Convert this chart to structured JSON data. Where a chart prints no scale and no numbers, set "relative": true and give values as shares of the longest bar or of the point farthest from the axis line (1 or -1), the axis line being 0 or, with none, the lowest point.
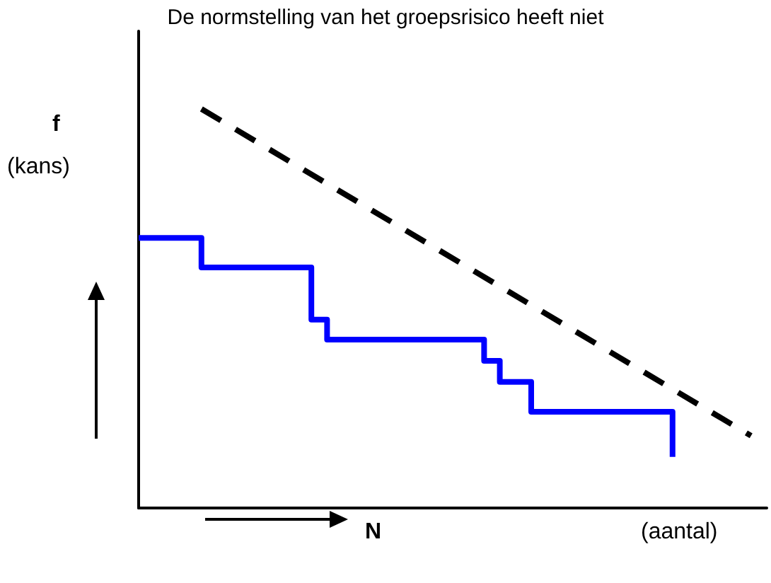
{
  "chart_data": {
    "type": "step",
    "title": "De normstelling van het groepsrisico heeft niet",
    "ylabel": "f",
    "xlabel": "N",
    "annotations": [
      "(kans)",
      "(aantal)"
    ],
    "relative": true,
    "grid": false,
    "marker": "none",
    "categories": [
      null,
      null,
      null,
      null,
      null,
      null,
      null,
      null,
      null,
      null,
      null,
      null,
      null,
      null,
      null,
      null,
      null,
      null,
      null,
      null,
      null,
      null,
      null,
      null,
      null,
      null,
      null,
      null,
      null,
      null,
      null,
      null,
      null,
      null,
      null,
      null,
      null,
      null,
      null,
      null,
      null
    ],
    "series": [
      {
        "color": "#0000ff",
        "line_style": "solid",
        "values": [
          0.677,
          0.677,
          0.677,
          0.677,
          0.603,
          0.603,
          0.603,
          0.603,
          0.603,
          0.603,
          0.603,
          0.472,
          0.422,
          0.422,
          0.422,
          0.422,
          0.422,
          0.422,
          0.422,
          0.422,
          0.422,
          0.422,
          0.369,
          0.316,
          0.316,
          0.241,
          0.241,
          0.241,
          0.241,
          0.241,
          0.241,
          0.241,
          0.241,
          0.241,
          0.128,
          null,
          null,
          null,
          null,
          null,
          null
        ]
      },
      {
        "type": "line",
        "color": "#000000",
        "line_style": "dashed",
        "values": [
          null,
          null,
          null,
          null,
          1,
          null,
          null,
          null,
          null,
          null,
          null,
          null,
          null,
          null,
          null,
          null,
          null,
          null,
          null,
          null,
          null,
          null,
          null,
          null,
          null,
          null,
          null,
          null,
          null,
          null,
          null,
          null,
          null,
          null,
          null,
          null,
          null,
          null,
          null,
          0.181,
          null
        ]
      }
    ]
  }
}
